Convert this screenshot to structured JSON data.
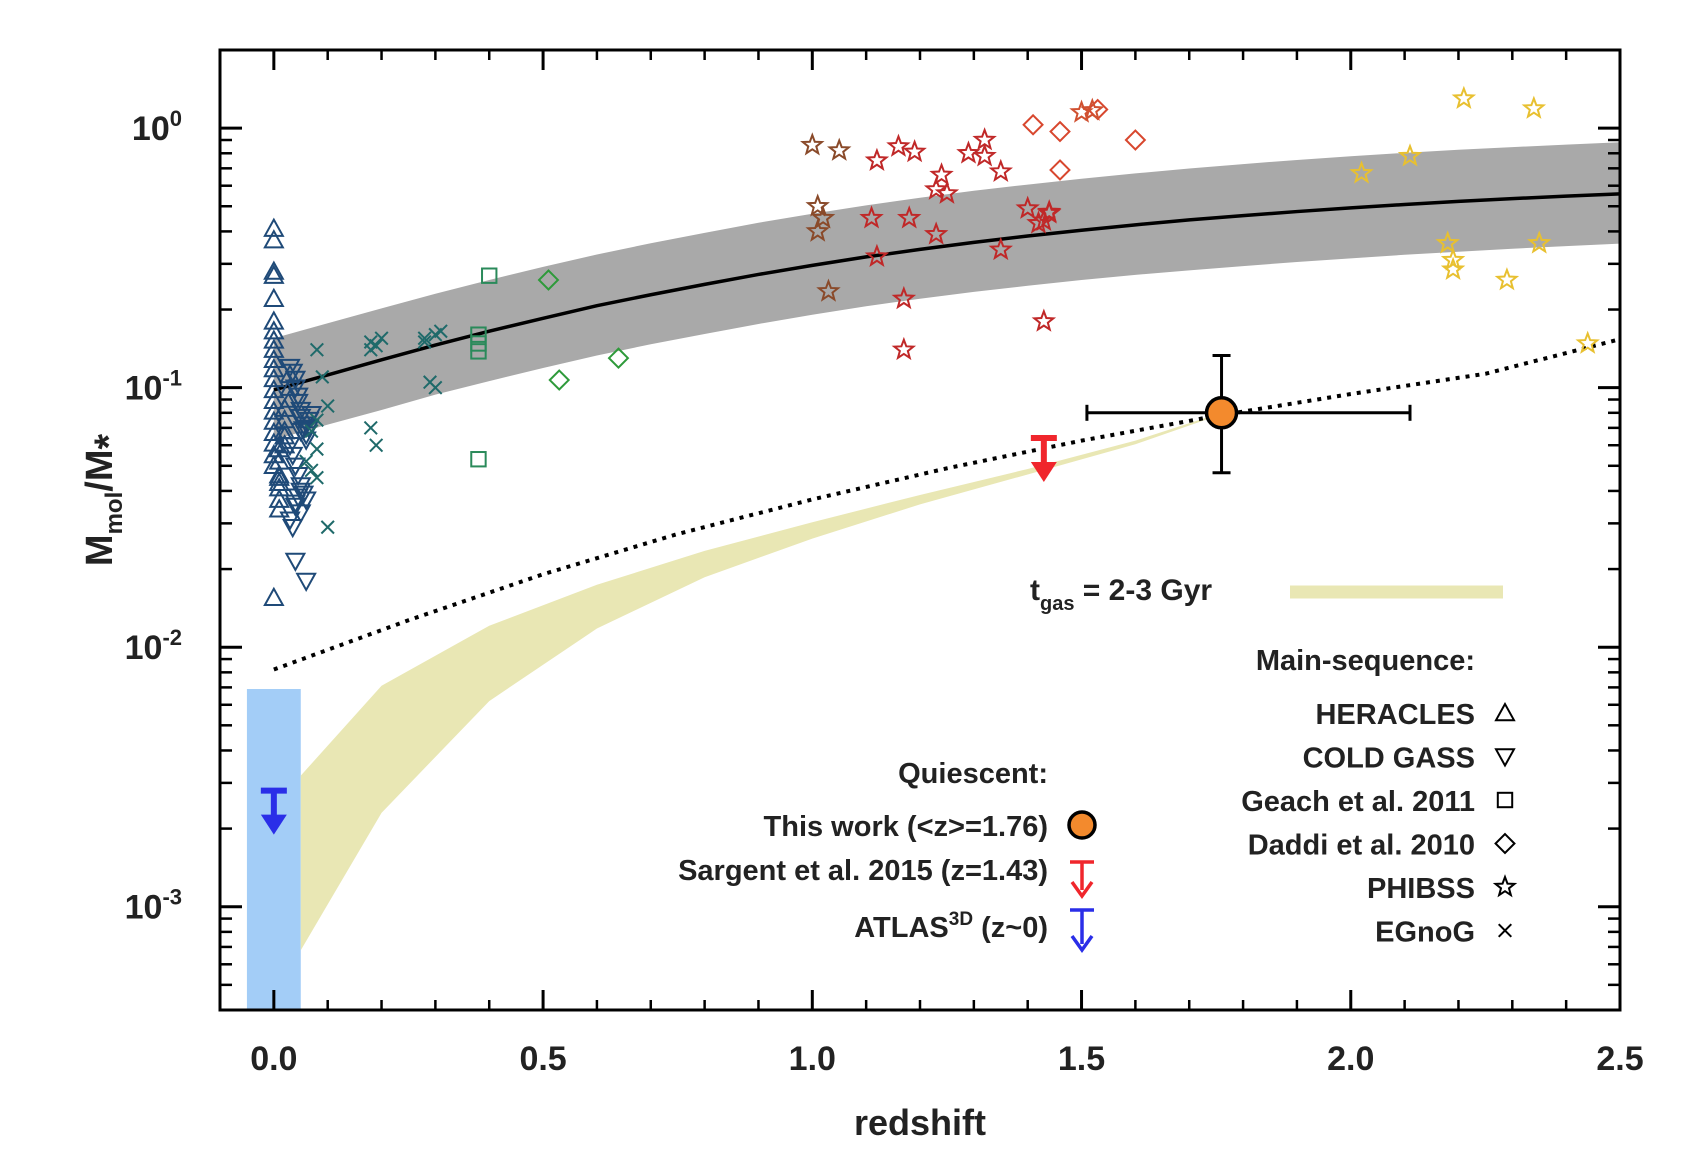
{
  "chart_data": {
    "type": "scatter",
    "title": "",
    "xlabel": "redshift",
    "ylabel": "M_mol/M_*",
    "ylabel_parts": {
      "main": "M",
      "sub": "mol",
      "sep": "/M",
      "star": "*"
    },
    "xlim": [
      -0.1,
      2.5
    ],
    "ylim": [
      0.0004,
      2.0
    ],
    "yscale": "log",
    "grid": false,
    "x_ticks": [
      {
        "v": 0.0,
        "label": "0.0"
      },
      {
        "v": 0.5,
        "label": "0.5"
      },
      {
        "v": 1.0,
        "label": "1.0"
      },
      {
        "v": 1.5,
        "label": "1.5"
      },
      {
        "v": 2.0,
        "label": "2.0"
      },
      {
        "v": 2.5,
        "label": "2.5"
      }
    ],
    "y_ticks": [
      {
        "v": 0.001,
        "base": "10",
        "exp": "-3"
      },
      {
        "v": 0.01,
        "base": "10",
        "exp": "-2"
      },
      {
        "v": 0.1,
        "base": "10",
        "exp": "-1"
      },
      {
        "v": 1.0,
        "base": "10",
        "exp": "0"
      }
    ],
    "colors": {
      "band": "#a9a9a9",
      "tgas": "#e9e7b4",
      "atlas_box": "#a3cdf7",
      "this_work": "#f38a2d",
      "sargent": "#f0262c",
      "atlas": "#2a2ee8"
    },
    "main_sequence_band": {
      "x": [
        0.0,
        0.1,
        0.2,
        0.3,
        0.4,
        0.5,
        0.6,
        0.7,
        0.8,
        0.9,
        1.0,
        1.1,
        1.2,
        1.3,
        1.4,
        1.5,
        1.6,
        1.7,
        1.8,
        1.9,
        2.0,
        2.1,
        2.2,
        2.3,
        2.4,
        2.5
      ],
      "center": [
        0.098,
        0.112,
        0.128,
        0.146,
        0.165,
        0.185,
        0.207,
        0.228,
        0.25,
        0.273,
        0.296,
        0.319,
        0.341,
        0.363,
        0.384,
        0.404,
        0.424,
        0.443,
        0.46,
        0.477,
        0.493,
        0.508,
        0.522,
        0.535,
        0.547,
        0.558
      ],
      "lower": [
        0.063,
        0.072,
        0.082,
        0.094,
        0.106,
        0.119,
        0.133,
        0.147,
        0.161,
        0.176,
        0.191,
        0.206,
        0.22,
        0.234,
        0.247,
        0.26,
        0.272,
        0.283,
        0.294,
        0.305,
        0.315,
        0.325,
        0.334,
        0.343,
        0.351,
        0.359
      ],
      "upper": [
        0.155,
        0.177,
        0.202,
        0.23,
        0.26,
        0.292,
        0.326,
        0.36,
        0.395,
        0.432,
        0.468,
        0.504,
        0.539,
        0.574,
        0.606,
        0.638,
        0.669,
        0.699,
        0.727,
        0.754,
        0.779,
        0.803,
        0.825,
        0.845,
        0.864,
        0.882
      ]
    },
    "dotted_line": {
      "x": [
        0.0,
        0.25,
        0.5,
        0.75,
        1.0,
        1.25,
        1.5,
        1.75,
        2.0,
        2.25,
        2.5
      ],
      "y": [
        0.0082,
        0.0127,
        0.0191,
        0.0273,
        0.0371,
        0.0489,
        0.0625,
        0.0778,
        0.0945,
        0.1131,
        0.1537
      ]
    },
    "tgas_band": {
      "x": [
        0.05,
        0.2,
        0.4,
        0.6,
        0.8,
        1.0,
        1.2,
        1.4,
        1.6,
        1.76
      ],
      "lower": [
        0.00068,
        0.0023,
        0.0062,
        0.0118,
        0.0186,
        0.0262,
        0.0355,
        0.0463,
        0.0605,
        0.079
      ],
      "upper": [
        0.0032,
        0.0071,
        0.0121,
        0.0174,
        0.0235,
        0.0303,
        0.0386,
        0.0486,
        0.0625,
        0.08
      ]
    },
    "atlas_box": {
      "x0": -0.05,
      "x1": 0.05,
      "y0": 0.0004,
      "y1": 0.0069
    },
    "series": [
      {
        "name": "HERACLES",
        "marker": "triangle-up",
        "color": "#1f4a78",
        "x": [
          0.0,
          0.0,
          0.0,
          0.0,
          0.0,
          0.0,
          0.0,
          0.0,
          0.0,
          0.0,
          0.0,
          0.0,
          0.0,
          0.0,
          0.0,
          0.0,
          0.0,
          0.0,
          0.0,
          0.0,
          0.01,
          0.01,
          0.01,
          0.01,
          0.01,
          0.01,
          0.02,
          0.02,
          0.02,
          0.02,
          0.03,
          0.03,
          0.03,
          0.02,
          0.01,
          0.01,
          0.0
        ],
        "y": [
          0.41,
          0.37,
          0.28,
          0.27,
          0.22,
          0.18,
          0.165,
          0.152,
          0.14,
          0.128,
          0.118,
          0.108,
          0.098,
          0.089,
          0.081,
          0.074,
          0.067,
          0.061,
          0.055,
          0.05,
          0.045,
          0.041,
          0.037,
          0.034,
          0.046,
          0.052,
          0.06,
          0.068,
          0.075,
          0.083,
          0.09,
          0.1,
          0.112,
          0.065,
          0.058,
          0.043,
          0.0155
        ]
      },
      {
        "name": "COLD GASS",
        "marker": "triangle-down",
        "color": "#1f4a78",
        "x": [
          0.03,
          0.035,
          0.04,
          0.04,
          0.045,
          0.045,
          0.05,
          0.05,
          0.055,
          0.055,
          0.06,
          0.06,
          0.065,
          0.065,
          0.07,
          0.03,
          0.035,
          0.04,
          0.045,
          0.05,
          0.055,
          0.06,
          0.04,
          0.05,
          0.03,
          0.035,
          0.04,
          0.045,
          0.05,
          0.04,
          0.06,
          0.05
        ],
        "y": [
          0.12,
          0.115,
          0.108,
          0.1,
          0.093,
          0.088,
          0.082,
          0.077,
          0.072,
          0.069,
          0.066,
          0.063,
          0.07,
          0.075,
          0.079,
          0.06,
          0.055,
          0.05,
          0.046,
          0.042,
          0.039,
          0.037,
          0.035,
          0.033,
          0.031,
          0.029,
          0.036,
          0.038,
          0.04,
          0.0215,
          0.018,
          0.068
        ]
      },
      {
        "name": "Geach et al. 2011",
        "marker": "square",
        "color": "#2a8a5a",
        "x": [
          0.4,
          0.38,
          0.38,
          0.38,
          0.38
        ],
        "y": [
          0.27,
          0.16,
          0.148,
          0.138,
          0.053
        ]
      },
      {
        "name": "Daddi et al. 2010",
        "marker": "diamond",
        "color": "#2e9a3a",
        "x": [
          0.51,
          0.53,
          0.64
        ],
        "y": [
          0.26,
          0.107,
          0.13
        ]
      },
      {
        "name": "Daddi et al. 2010",
        "marker": "diamond",
        "color": "#d8472e",
        "x": [
          1.41,
          1.46,
          1.46,
          1.53,
          1.6
        ],
        "y": [
          1.03,
          0.97,
          0.69,
          1.18,
          0.9
        ]
      },
      {
        "name": "PHIBSS",
        "marker": "star",
        "color": "#8a4a2a",
        "x": [
          1.0,
          1.05,
          1.01,
          1.02,
          1.01,
          1.03
        ],
        "y": [
          0.86,
          0.82,
          0.5,
          0.45,
          0.4,
          0.235
        ]
      },
      {
        "name": "PHIBSS",
        "marker": "star",
        "color": "#c02828",
        "x": [
          1.12,
          1.16,
          1.19,
          1.24,
          1.29,
          1.32,
          1.32,
          1.35,
          1.4,
          1.44,
          1.23,
          1.25,
          1.11,
          1.18,
          1.12,
          1.23,
          1.17,
          1.17,
          1.35,
          1.42,
          1.43,
          1.44,
          1.43
        ],
        "y": [
          0.75,
          0.85,
          0.81,
          0.66,
          0.8,
          0.9,
          0.78,
          0.68,
          0.49,
          0.475,
          0.58,
          0.56,
          0.45,
          0.45,
          0.32,
          0.39,
          0.22,
          0.14,
          0.34,
          0.43,
          0.44,
          0.47,
          0.18
        ]
      },
      {
        "name": "PHIBSS",
        "marker": "star",
        "color": "#d05030",
        "x": [
          1.52,
          1.5
        ],
        "y": [
          1.17,
          1.15
        ]
      },
      {
        "name": "PHIBSS",
        "marker": "star",
        "color": "#e8c030",
        "x": [
          2.21,
          2.34,
          2.02,
          2.11,
          2.18,
          2.19,
          2.19,
          2.29,
          2.35,
          2.44
        ],
        "y": [
          1.3,
          1.19,
          0.67,
          0.78,
          0.36,
          0.31,
          0.285,
          0.26,
          0.36,
          0.148
        ]
      },
      {
        "name": "EGnoG",
        "marker": "x",
        "color": "#1f6a6a",
        "x": [
          0.08,
          0.09,
          0.1,
          0.08,
          0.07,
          0.08,
          0.06,
          0.07,
          0.08,
          0.1,
          0.18,
          0.19,
          0.2,
          0.18,
          0.18,
          0.19,
          0.28,
          0.3,
          0.31,
          0.29,
          0.3,
          0.28
        ],
        "y": [
          0.14,
          0.11,
          0.085,
          0.075,
          0.068,
          0.058,
          0.052,
          0.048,
          0.045,
          0.029,
          0.07,
          0.06,
          0.155,
          0.15,
          0.14,
          0.145,
          0.155,
          0.16,
          0.165,
          0.105,
          0.1,
          0.15
        ]
      }
    ],
    "this_work": {
      "label": "This work (<z>=1.76)",
      "x": 1.76,
      "y": 0.08,
      "xerr": [
        1.51,
        2.11
      ],
      "yerr": [
        0.047,
        0.133
      ]
    },
    "sargent_limit": {
      "label": "Sargent et al. 2015 (z=1.43)",
      "x": 1.43,
      "y": 0.064
    },
    "atlas_limit": {
      "label_main": "ATLAS",
      "label_sup": "3D",
      "label_rest": " (z~0)",
      "x": 0.0,
      "y": 0.0028
    },
    "legend_quiescent_title": "Quiescent:",
    "legend_ms_title": "Main-sequence:",
    "legend_ms_items": [
      {
        "label": "HERACLES",
        "marker": "triangle-up"
      },
      {
        "label": "COLD GASS",
        "marker": "triangle-down"
      },
      {
        "label": "Geach et al. 2011",
        "marker": "square"
      },
      {
        "label": "Daddi et al. 2010",
        "marker": "diamond"
      },
      {
        "label": "PHIBSS",
        "marker": "star"
      },
      {
        "label": "EGnoG",
        "marker": "x"
      }
    ],
    "tgas_label": {
      "main": "t",
      "sub": "gas",
      "rest": " = 2-3 Gyr"
    }
  }
}
